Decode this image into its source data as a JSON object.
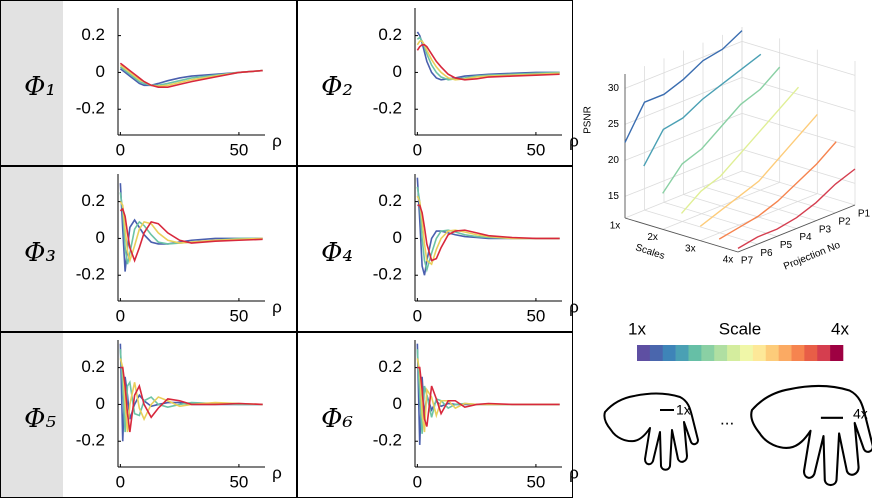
{
  "chart_data": [
    {
      "type": "line",
      "title": "Φ₁",
      "xlabel": "ρ",
      "xlim": [
        -1,
        61
      ],
      "xticks": [
        0,
        50
      ],
      "ylim": [
        -0.34,
        0.35
      ],
      "yticks": [
        -0.2,
        0,
        0.2
      ],
      "x": [
        0,
        1,
        2,
        3,
        4,
        6,
        8,
        10,
        13,
        16,
        20,
        25,
        30,
        40,
        50,
        60
      ],
      "series": [
        {
          "color": "#4a5fae",
          "values": [
            0.02,
            0.01,
            0,
            -0.01,
            -0.02,
            -0.04,
            -0.06,
            -0.07,
            -0.07,
            -0.06,
            -0.045,
            -0.03,
            -0.02,
            -0.01,
            0,
            0.01
          ]
        },
        {
          "color": "#6cc3a5",
          "values": [
            0.03,
            0.02,
            0.01,
            0,
            -0.01,
            -0.03,
            -0.05,
            -0.06,
            -0.07,
            -0.07,
            -0.06,
            -0.045,
            -0.03,
            -0.015,
            0,
            0.01
          ]
        },
        {
          "color": "#e9cf5a",
          "values": [
            0.04,
            0.03,
            0.02,
            0.01,
            0,
            -0.02,
            -0.04,
            -0.05,
            -0.07,
            -0.075,
            -0.07,
            -0.055,
            -0.04,
            -0.02,
            0,
            0.01
          ]
        },
        {
          "color": "#d8283c",
          "values": [
            0.05,
            0.04,
            0.03,
            0.02,
            0.01,
            -0.01,
            -0.03,
            -0.05,
            -0.07,
            -0.08,
            -0.08,
            -0.065,
            -0.05,
            -0.025,
            0,
            0.01
          ]
        }
      ]
    },
    {
      "type": "line",
      "title": "Φ₂",
      "xlabel": "ρ",
      "xlim": [
        -1,
        61
      ],
      "xticks": [
        0,
        50
      ],
      "ylim": [
        -0.34,
        0.35
      ],
      "yticks": [
        -0.2,
        0,
        0.2
      ],
      "x": [
        0,
        1,
        2,
        3,
        4,
        6,
        8,
        10,
        13,
        16,
        20,
        25,
        30,
        40,
        50,
        60
      ],
      "series": [
        {
          "color": "#4a5fae",
          "values": [
            0.22,
            0.2,
            0.16,
            0.11,
            0.06,
            0,
            -0.03,
            -0.04,
            -0.035,
            -0.03,
            -0.02,
            -0.015,
            -0.01,
            -0.005,
            0,
            0
          ]
        },
        {
          "color": "#6cc3a5",
          "values": [
            0.18,
            0.19,
            0.17,
            0.14,
            0.1,
            0.04,
            0,
            -0.025,
            -0.04,
            -0.035,
            -0.03,
            -0.02,
            -0.015,
            -0.01,
            -0.005,
            0
          ]
        },
        {
          "color": "#e9cf5a",
          "values": [
            0.15,
            0.17,
            0.17,
            0.15,
            0.12,
            0.07,
            0.03,
            0,
            -0.03,
            -0.04,
            -0.035,
            -0.025,
            -0.02,
            -0.015,
            -0.01,
            -0.005
          ]
        },
        {
          "color": "#d8283c",
          "values": [
            0.12,
            0.14,
            0.15,
            0.15,
            0.14,
            0.1,
            0.06,
            0.03,
            -0.01,
            -0.03,
            -0.04,
            -0.035,
            -0.025,
            -0.02,
            -0.015,
            -0.01
          ]
        }
      ]
    },
    {
      "type": "line",
      "title": "Φ₃",
      "xlabel": "ρ",
      "xlim": [
        -1,
        61
      ],
      "xticks": [
        0,
        50
      ],
      "ylim": [
        -0.34,
        0.35
      ],
      "yticks": [
        -0.2,
        0,
        0.2
      ],
      "x": [
        0,
        1,
        2,
        3,
        4,
        6,
        8,
        10,
        13,
        16,
        20,
        25,
        30,
        40,
        50,
        60
      ],
      "series": [
        {
          "color": "#4a5fae",
          "values": [
            0.3,
            0.05,
            -0.18,
            -0.05,
            0.06,
            0.1,
            0.06,
            0.02,
            -0.02,
            -0.03,
            -0.03,
            -0.02,
            -0.01,
            0,
            0,
            0
          ]
        },
        {
          "color": "#6cc3a5",
          "values": [
            0.25,
            0.15,
            -0.05,
            -0.14,
            -0.08,
            0.05,
            0.09,
            0.07,
            0.02,
            -0.02,
            -0.03,
            -0.025,
            -0.02,
            -0.01,
            0,
            0
          ]
        },
        {
          "color": "#e9cf5a",
          "values": [
            0.2,
            0.18,
            0.05,
            -0.07,
            -0.12,
            -0.04,
            0.05,
            0.09,
            0.08,
            0.03,
            -0.01,
            -0.025,
            -0.02,
            -0.01,
            -0.005,
            0
          ]
        },
        {
          "color": "#d8283c",
          "values": [
            0.15,
            0.16,
            0.12,
            0.03,
            -0.05,
            -0.12,
            -0.05,
            0.03,
            0.09,
            0.08,
            0.03,
            -0.01,
            -0.025,
            -0.015,
            -0.01,
            -0.005
          ]
        }
      ]
    },
    {
      "type": "line",
      "title": "Φ₄",
      "xlabel": "ρ",
      "xlim": [
        -1,
        61
      ],
      "xticks": [
        0,
        50
      ],
      "ylim": [
        -0.34,
        0.35
      ],
      "yticks": [
        -0.2,
        0,
        0.2
      ],
      "x": [
        0,
        1,
        2,
        3,
        4,
        6,
        8,
        10,
        13,
        16,
        20,
        25,
        30,
        40,
        50,
        60
      ],
      "series": [
        {
          "color": "#4a5fae",
          "values": [
            0.33,
            0.1,
            -0.15,
            -0.2,
            -0.12,
            0,
            0.04,
            0.04,
            0.03,
            0.02,
            0.01,
            0.005,
            0,
            0,
            0,
            0
          ]
        },
        {
          "color": "#6cc3a5",
          "values": [
            0.28,
            0.2,
            0,
            -0.12,
            -0.17,
            -0.08,
            0,
            0.04,
            0.045,
            0.035,
            0.02,
            0.01,
            0.005,
            0,
            0,
            0
          ]
        },
        {
          "color": "#e9cf5a",
          "values": [
            0.23,
            0.2,
            0.1,
            -0.03,
            -0.12,
            -0.14,
            -0.06,
            0,
            0.04,
            0.045,
            0.035,
            0.02,
            0.01,
            0,
            0,
            0
          ]
        },
        {
          "color": "#d8283c",
          "values": [
            0.18,
            0.18,
            0.14,
            0.06,
            -0.03,
            -0.12,
            -0.11,
            -0.05,
            0.02,
            0.04,
            0.045,
            0.03,
            0.015,
            0.005,
            0,
            0
          ]
        }
      ]
    },
    {
      "type": "line",
      "title": "Φ₅",
      "xlabel": "ρ",
      "xlim": [
        -1,
        61
      ],
      "xticks": [
        0,
        50
      ],
      "ylim": [
        -0.34,
        0.35
      ],
      "yticks": [
        -0.2,
        0,
        0.2
      ],
      "x": [
        0,
        1,
        2,
        3,
        4,
        6,
        8,
        10,
        13,
        16,
        20,
        25,
        30,
        40,
        50,
        60
      ],
      "series": [
        {
          "color": "#4a5fae",
          "values": [
            0.33,
            -0.2,
            0.15,
            0.05,
            -0.08,
            0,
            0.05,
            0.02,
            -0.01,
            0,
            0.01,
            0.01,
            0,
            0,
            0,
            0
          ]
        },
        {
          "color": "#6cc3a5",
          "values": [
            0.3,
            0.1,
            -0.15,
            0.1,
            0.12,
            -0.05,
            -0.06,
            0.02,
            0.04,
            0,
            -0.015,
            0,
            0.01,
            0.005,
            0,
            0
          ]
        },
        {
          "color": "#e9cf5a",
          "values": [
            0.25,
            0.2,
            0,
            -0.15,
            0,
            0.12,
            -0.02,
            -0.08,
            0,
            0.04,
            0.02,
            -0.01,
            0,
            0.01,
            0.005,
            0
          ]
        },
        {
          "color": "#d8283c",
          "values": [
            0.2,
            0.2,
            0.1,
            -0.05,
            -0.15,
            0.05,
            0.1,
            0,
            -0.07,
            -0.02,
            0.03,
            0.02,
            0,
            0,
            0.005,
            0
          ]
        }
      ]
    },
    {
      "type": "line",
      "title": "Φ₆",
      "xlabel": "ρ",
      "xlim": [
        -1,
        61
      ],
      "xticks": [
        0,
        50
      ],
      "ylim": [
        -0.34,
        0.35
      ],
      "yticks": [
        -0.2,
        0,
        0.2
      ],
      "x": [
        0,
        1,
        2,
        3,
        4,
        6,
        8,
        10,
        13,
        16,
        20,
        25,
        30,
        40,
        50,
        60
      ],
      "series": [
        {
          "color": "#4a5fae",
          "values": [
            0.33,
            -0.22,
            0.15,
            -0.06,
            0.05,
            -0.03,
            0.02,
            -0.01,
            0.005,
            0,
            0,
            0,
            0,
            0,
            0,
            0
          ]
        },
        {
          "color": "#6cc3a5",
          "values": [
            0.3,
            0.05,
            -0.16,
            0.1,
            0.05,
            -0.07,
            0.03,
            0.02,
            -0.02,
            0,
            0.005,
            0,
            0,
            0,
            0,
            0
          ]
        },
        {
          "color": "#e9cf5a",
          "values": [
            0.25,
            0.18,
            -0.05,
            -0.15,
            0.08,
            0.04,
            -0.06,
            0.02,
            0.02,
            -0.02,
            0.005,
            0,
            0,
            0,
            0,
            0
          ]
        },
        {
          "color": "#d8283c",
          "values": [
            0.2,
            0.2,
            0.08,
            -0.08,
            -0.12,
            0.1,
            0.03,
            -0.05,
            0.02,
            0.02,
            -0.015,
            0,
            0.005,
            0,
            0,
            0
          ]
        }
      ]
    },
    {
      "type": "line3d",
      "zlabel": "PSNR",
      "xlabel": "Scales",
      "ylabel": "Projection No",
      "xlim": [
        1,
        4
      ],
      "xticks": [
        {
          "value": 1,
          "label": "1x"
        },
        {
          "value": 2,
          "label": "2x"
        },
        {
          "value": 3,
          "label": "3x"
        },
        {
          "value": 4,
          "label": "4x"
        }
      ],
      "categories": [
        "P7",
        "P6",
        "P5",
        "P4",
        "P3",
        "P2",
        "P1"
      ],
      "zlim": [
        12,
        32
      ],
      "zticks": [
        15,
        20,
        25,
        30
      ],
      "x": [
        1,
        1.5,
        2,
        2.5,
        3,
        3.5,
        4
      ],
      "series": [
        {
          "color": "#3a6db0",
          "values": [
            22.5,
            27,
            27,
            28,
            29.5,
            30,
            31.5
          ]
        },
        {
          "color": "#4aa0b4",
          "values": [
            20,
            24,
            24.5,
            26,
            27,
            28,
            29
          ]
        },
        {
          "color": "#8ad0a4",
          "values": [
            17,
            20,
            21,
            23,
            25,
            26,
            28
          ]
        },
        {
          "color": "#e0ef96",
          "values": [
            15,
            17,
            18,
            20,
            22,
            24,
            26
          ]
        },
        {
          "color": "#fdcc7a",
          "values": [
            14,
            15,
            16,
            17,
            19,
            21,
            23
          ]
        },
        {
          "color": "#f6844f",
          "values": [
            13,
            13.5,
            14,
            15,
            16.5,
            18,
            20
          ]
        },
        {
          "color": "#d53e4f",
          "values": [
            12.5,
            13,
            13,
            13.5,
            14.5,
            16,
            17
          ]
        }
      ]
    }
  ],
  "colorbar": {
    "min_label": "1x",
    "title": "Scale",
    "max_label": "4x",
    "colors": [
      "#5e4fa2",
      "#4a66ad",
      "#3e84b8",
      "#4aa0b4",
      "#66bfa6",
      "#8ad0a4",
      "#b0dfa2",
      "#d4ed9e",
      "#f0f7a8",
      "#fde898",
      "#fdcc7a",
      "#fbaa63",
      "#f6844f",
      "#e85e47",
      "#d53e4f",
      "#9e0142"
    ]
  },
  "hands": {
    "small_label": "1x",
    "ellipsis": "...",
    "large_label": "4x"
  }
}
